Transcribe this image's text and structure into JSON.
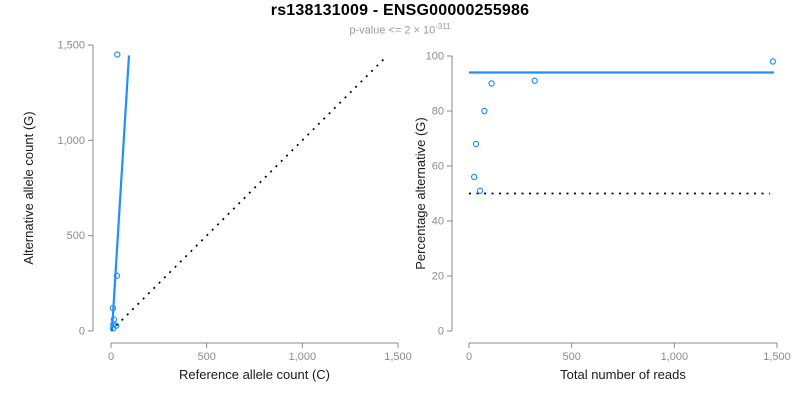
{
  "header": {
    "title": "rs138131009 - ENSG00000255986",
    "subtitle_main": "p-value <= 2 × 10",
    "subtitle_exponent": "-311"
  },
  "colors": {
    "accent_blue": "#1E90FF",
    "dotted_black": "#000000",
    "axis": "#8a8a8a",
    "tick_label": "#8c8c8c",
    "axis_title": "#1a1a1a",
    "title_black": "#000000",
    "subtitle_gray": "#9b9b9b",
    "background": "#ffffff"
  },
  "chart_data": [
    {
      "type": "scatter",
      "name": "allele-counts-panel",
      "xlabel": "Reference allele count (C)",
      "ylabel": "Alternative allele count (G)",
      "xlim": [
        0,
        1500
      ],
      "ylim": [
        0,
        1500
      ],
      "xticks": [
        0,
        500,
        1000,
        1500
      ],
      "yticks": [
        0,
        500,
        1000,
        1500
      ],
      "xtick_labels": [
        "0",
        "500",
        "1,000",
        "1,500"
      ],
      "ytick_labels": [
        "0",
        "500",
        "1,000",
        "1,500"
      ],
      "grid": false,
      "legend": null,
      "marker": "open-circle",
      "marker_color": "#1E90FF",
      "points": [
        [
          33,
          1450
        ],
        [
          31,
          290
        ],
        [
          10,
          120
        ],
        [
          15,
          60
        ],
        [
          12,
          35
        ],
        [
          27,
          28
        ],
        [
          11,
          14
        ]
      ],
      "lines": [
        {
          "name": "regression-line",
          "style": "solid",
          "color": "#1E90FF",
          "from": [
            5,
            0
          ],
          "to": [
            94,
            1445
          ]
        },
        {
          "name": "identity-line",
          "style": "dotted",
          "color": "#000000",
          "from": [
            0,
            0
          ],
          "to": [
            1443,
            1443
          ]
        }
      ]
    },
    {
      "type": "scatter",
      "name": "percentage-panel",
      "xlabel": "Total number of reads",
      "ylabel": "Percentage alternative (G)",
      "xlim": [
        0,
        1500
      ],
      "ylim": [
        0,
        100
      ],
      "xticks": [
        0,
        500,
        1000,
        1500
      ],
      "yticks": [
        0,
        20,
        40,
        60,
        80,
        100
      ],
      "xtick_labels": [
        "0",
        "500",
        "1,000",
        "1,500"
      ],
      "ytick_labels": [
        "0",
        "20",
        "40",
        "60",
        "80",
        "100"
      ],
      "grid": false,
      "legend": null,
      "marker": "open-circle",
      "marker_color": "#1E90FF",
      "points": [
        [
          25,
          56
        ],
        [
          34,
          68
        ],
        [
          54,
          51
        ],
        [
          75,
          80
        ],
        [
          110,
          90
        ],
        [
          320,
          91
        ],
        [
          1480,
          98
        ]
      ],
      "lines": [
        {
          "name": "overall-percentage-line",
          "style": "solid",
          "color": "#1E90FF",
          "from": [
            0,
            94
          ],
          "to": [
            1485,
            94
          ]
        },
        {
          "name": "expected-50-percent-line",
          "style": "dotted",
          "color": "#000000",
          "from": [
            0,
            50
          ],
          "to": [
            1465,
            50
          ]
        }
      ]
    }
  ]
}
